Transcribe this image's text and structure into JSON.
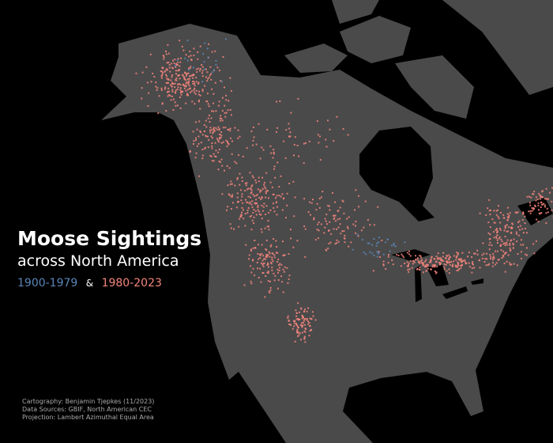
{
  "title": {
    "line1": "Moose Sightings",
    "line2": "across North America"
  },
  "legend": {
    "period1": "1900-1979",
    "separator": "&",
    "period2": "1980-2023"
  },
  "credits": [
    "Cartography: Benjamin Tjepkes (11/2023)",
    "Data Sources: GBIF, North American CEC",
    "Projection: Lambert Azimuthal Equal Area"
  ]
}
